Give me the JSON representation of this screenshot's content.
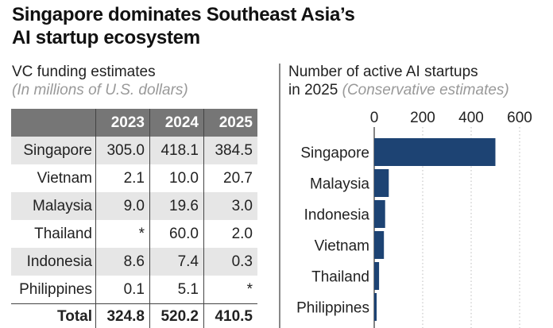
{
  "title": "Singapore dominates Southeast Asia’s AI startup ecosystem",
  "title_line1": "Singapore dominates Southeast Asia’s",
  "title_line2": "AI startup ecosystem",
  "left": {
    "heading": "VC funding estimates",
    "note": "(In millions of U.S. dollars)"
  },
  "right": {
    "heading_line1": "Number of active AI startups",
    "heading_line2": "in 2025",
    "note": "(Conservative estimates)"
  },
  "chart_data": [
    {
      "type": "table",
      "columns": [
        "",
        "2023",
        "2024",
        "2025"
      ],
      "rows": [
        [
          "Singapore",
          "305.0",
          "418.1",
          "384.5"
        ],
        [
          "Vietnam",
          "2.1",
          "10.0",
          "20.7"
        ],
        [
          "Malaysia",
          "9.0",
          "19.6",
          "3.0"
        ],
        [
          "Thailand",
          "*",
          "60.0",
          "2.0"
        ],
        [
          "Indonesia",
          "8.6",
          "7.4",
          "0.3"
        ],
        [
          "Philippines",
          "0.1",
          "5.1",
          "*"
        ],
        [
          "Total",
          "324.8",
          "520.2",
          "410.5"
        ]
      ]
    },
    {
      "type": "bar",
      "orientation": "horizontal",
      "categories": [
        "Singapore",
        "Malaysia",
        "Indonesia",
        "Vietnam",
        "Thailand",
        "Philippines"
      ],
      "values": [
        500,
        60,
        45,
        40,
        20,
        10
      ],
      "xlim": [
        0,
        600
      ],
      "xticks": [
        "0",
        "200",
        "400",
        "600"
      ],
      "grid": true,
      "bar_color": "#1d4373"
    }
  ]
}
